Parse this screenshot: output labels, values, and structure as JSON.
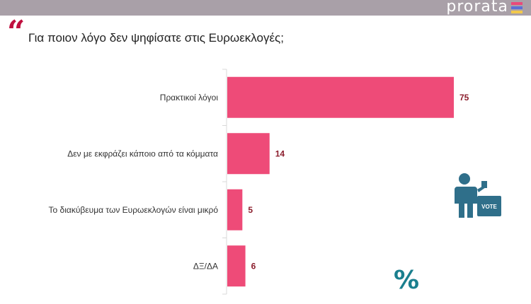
{
  "brand": {
    "name": "prorata",
    "bar_colors": [
      "#e94a7a",
      "#5b6fd6",
      "#f2c94c"
    ]
  },
  "header": {
    "quote_glyph": "“",
    "question": "Για ποιον λόγο δεν ψηφίσατε στις Ευρωεκλογές;"
  },
  "colors": {
    "accent": "#c0103f",
    "bar": "#ee4b78",
    "value_text": "#8b1d2c",
    "icon": "#2f6f8a",
    "percent": "#1a7f8e"
  },
  "decor": {
    "vote_label": "VOTE",
    "percent_symbol": "%"
  },
  "chart_data": {
    "type": "bar",
    "orientation": "horizontal",
    "title": "Για ποιον λόγο δεν ψηφίσατε στις Ευρωεκλογές;",
    "categories": [
      "Πρακτικοί λόγοι",
      "Δεν με εκφράζει κάποιο από τα κόμματα",
      "Το διακύβευμα των Ευρωεκλογών είναι μικρό",
      "ΔΞ/ΔΑ"
    ],
    "values": [
      75,
      14,
      5,
      6
    ],
    "unit": "%",
    "xlim": [
      0,
      75
    ],
    "grid": false
  }
}
